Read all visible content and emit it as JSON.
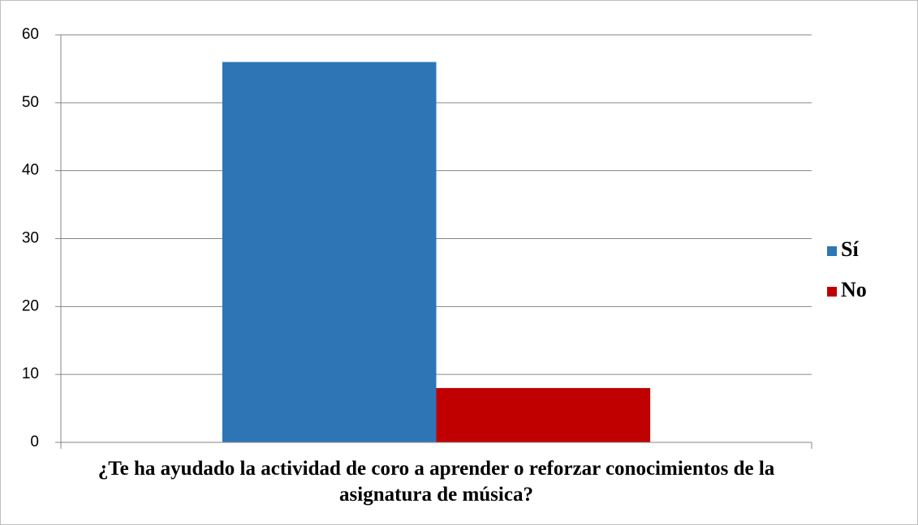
{
  "chart_data": {
    "type": "bar",
    "categories": [
      "¿Te ha ayudado la actividad de coro a aprender o reforzar conocimientos de la asignatura de música?"
    ],
    "series": [
      {
        "name": "Sí",
        "color": "#2e75b6",
        "values": [
          56
        ]
      },
      {
        "name": "No",
        "color": "#c00000",
        "values": [
          8
        ]
      }
    ],
    "ylim": [
      0,
      60
    ],
    "yticks": [
      0,
      10,
      20,
      30,
      40,
      50,
      60
    ],
    "grid": true,
    "legend": "right"
  }
}
